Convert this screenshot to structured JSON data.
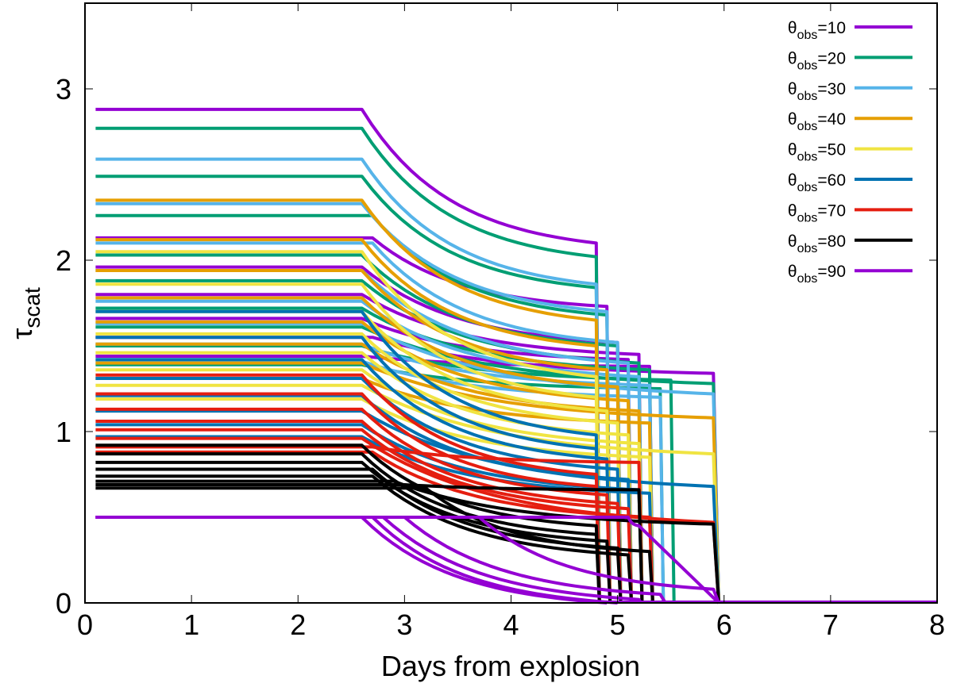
{
  "chart_data": {
    "type": "line",
    "title": "",
    "xlabel": "Days from explosion",
    "ylabel": "τ_scat",
    "ylabel_main": "τ",
    "ylabel_sub": "scat",
    "xlim": [
      0,
      8
    ],
    "ylim": [
      0,
      3.5
    ],
    "xticks": [
      0,
      1,
      2,
      3,
      4,
      5,
      6,
      7,
      8
    ],
    "yticks": [
      0,
      1,
      2,
      3
    ],
    "grid": false,
    "legend_position": "top-right",
    "legend": [
      {
        "label_main": "θ",
        "label_sub": "obs",
        "label_value": "=10",
        "color": "#9400d3"
      },
      {
        "label_main": "θ",
        "label_sub": "obs",
        "label_value": "=20",
        "color": "#009e73"
      },
      {
        "label_main": "θ",
        "label_sub": "obs",
        "label_value": "=30",
        "color": "#56b4e9"
      },
      {
        "label_main": "θ",
        "label_sub": "obs",
        "label_value": "=40",
        "color": "#e69f00"
      },
      {
        "label_main": "θ",
        "label_sub": "obs",
        "label_value": "=50",
        "color": "#f0e442"
      },
      {
        "label_main": "θ",
        "label_sub": "obs",
        "label_value": "=60",
        "color": "#0072b2"
      },
      {
        "label_main": "θ",
        "label_sub": "obs",
        "label_value": "=70",
        "color": "#e51e10"
      },
      {
        "label_main": "θ",
        "label_sub": "obs",
        "label_value": "=80",
        "color": "#000000"
      },
      {
        "label_main": "θ",
        "label_sub": "obs",
        "label_value": "=90",
        "color": "#9400d3"
      }
    ],
    "series_note": "Each curve: flat at tau0 from t=0.1 until t_break, then decays to tau_end at t_end, then drops to 0 at t_zero",
    "series": [
      {
        "group": 10,
        "color": "#9400d3",
        "curves": [
          {
            "tau0": 2.88,
            "t_break": 2.6,
            "tau_end": 2.1,
            "t_end": 4.8,
            "t_zero": 4.83
          },
          {
            "tau0": 2.13,
            "t_break": 2.7,
            "tau_end": 1.73,
            "t_end": 4.9,
            "t_zero": 4.93
          },
          {
            "tau0": 1.96,
            "t_break": 2.6,
            "tau_end": 1.52,
            "t_end": 5.0,
            "t_zero": 5.03
          },
          {
            "tau0": 1.8,
            "t_break": 2.6,
            "tau_end": 1.45,
            "t_end": 5.2,
            "t_zero": 5.23
          },
          {
            "tau0": 1.66,
            "t_break": 2.6,
            "tau_end": 1.42,
            "t_end": 5.1,
            "t_zero": 5.13
          },
          {
            "tau0": 1.55,
            "t_break": 2.7,
            "tau_end": 1.34,
            "t_end": 5.9,
            "t_zero": 5.95
          },
          {
            "tau0": 1.44,
            "t_break": 2.6,
            "tau_end": 1.38,
            "t_end": 5.3,
            "t_zero": 5.33
          }
        ]
      },
      {
        "group": 20,
        "color": "#009e73",
        "curves": [
          {
            "tau0": 2.77,
            "t_break": 2.6,
            "tau_end": 2.02,
            "t_end": 4.8,
            "t_zero": 4.83
          },
          {
            "tau0": 2.49,
            "t_break": 2.6,
            "tau_end": 1.84,
            "t_end": 4.8,
            "t_zero": 4.83
          },
          {
            "tau0": 2.26,
            "t_break": 2.7,
            "tau_end": 1.68,
            "t_end": 4.9,
            "t_zero": 4.93
          },
          {
            "tau0": 2.03,
            "t_break": 2.6,
            "tau_end": 1.5,
            "t_end": 5.0,
            "t_zero": 5.03
          },
          {
            "tau0": 1.88,
            "t_break": 2.6,
            "tau_end": 1.4,
            "t_end": 5.2,
            "t_zero": 5.23
          },
          {
            "tau0": 1.72,
            "t_break": 2.6,
            "tau_end": 1.36,
            "t_end": 5.3,
            "t_zero": 5.33
          },
          {
            "tau0": 1.61,
            "t_break": 2.6,
            "tau_end": 1.28,
            "t_end": 5.9,
            "t_zero": 5.95
          },
          {
            "tau0": 1.5,
            "t_break": 2.6,
            "tau_end": 1.3,
            "t_end": 5.5,
            "t_zero": 5.53
          },
          {
            "tau0": 1.39,
            "t_break": 2.6,
            "tau_end": 1.25,
            "t_end": 5.4,
            "t_zero": 5.43
          }
        ]
      },
      {
        "group": 30,
        "color": "#56b4e9",
        "curves": [
          {
            "tau0": 2.59,
            "t_break": 2.6,
            "tau_end": 1.86,
            "t_end": 4.8,
            "t_zero": 4.83
          },
          {
            "tau0": 2.33,
            "t_break": 2.6,
            "tau_end": 1.7,
            "t_end": 4.9,
            "t_zero": 4.93
          },
          {
            "tau0": 2.1,
            "t_break": 2.7,
            "tau_end": 1.52,
            "t_end": 5.0,
            "t_zero": 5.03
          },
          {
            "tau0": 1.94,
            "t_break": 2.6,
            "tau_end": 1.4,
            "t_end": 5.1,
            "t_zero": 5.13
          },
          {
            "tau0": 1.76,
            "t_break": 2.6,
            "tau_end": 1.32,
            "t_end": 5.2,
            "t_zero": 5.23
          },
          {
            "tau0": 1.63,
            "t_break": 2.6,
            "tau_end": 1.22,
            "t_end": 5.9,
            "t_zero": 5.95
          },
          {
            "tau0": 1.51,
            "t_break": 2.6,
            "tau_end": 1.27,
            "t_end": 5.3,
            "t_zero": 5.33
          },
          {
            "tau0": 1.41,
            "t_break": 2.6,
            "tau_end": 1.2,
            "t_end": 5.4,
            "t_zero": 5.43
          }
        ]
      },
      {
        "group": 40,
        "color": "#e69f00",
        "curves": [
          {
            "tau0": 2.35,
            "t_break": 2.6,
            "tau_end": 1.65,
            "t_end": 4.8,
            "t_zero": 4.83
          },
          {
            "tau0": 2.12,
            "t_break": 2.6,
            "tau_end": 1.5,
            "t_end": 4.8,
            "t_zero": 4.83
          },
          {
            "tau0": 1.94,
            "t_break": 2.6,
            "tau_end": 1.36,
            "t_end": 4.9,
            "t_zero": 4.93
          },
          {
            "tau0": 1.78,
            "t_break": 2.6,
            "tau_end": 1.26,
            "t_end": 5.0,
            "t_zero": 5.03
          },
          {
            "tau0": 1.64,
            "t_break": 2.6,
            "tau_end": 1.18,
            "t_end": 5.1,
            "t_zero": 5.13
          },
          {
            "tau0": 1.51,
            "t_break": 2.6,
            "tau_end": 1.12,
            "t_end": 5.2,
            "t_zero": 5.23
          },
          {
            "tau0": 1.4,
            "t_break": 2.6,
            "tau_end": 1.08,
            "t_end": 5.9,
            "t_zero": 5.95
          },
          {
            "tau0": 1.31,
            "t_break": 2.6,
            "tau_end": 1.05,
            "t_end": 5.3,
            "t_zero": 5.33
          }
        ]
      },
      {
        "group": 50,
        "color": "#f0e442",
        "curves": [
          {
            "tau0": 2.05,
            "t_break": 2.6,
            "tau_end": 1.32,
            "t_end": 4.8,
            "t_zero": 4.83
          },
          {
            "tau0": 1.86,
            "t_break": 2.6,
            "tau_end": 1.2,
            "t_end": 4.8,
            "t_zero": 4.83
          },
          {
            "tau0": 1.7,
            "t_break": 2.6,
            "tau_end": 1.12,
            "t_end": 4.9,
            "t_zero": 4.93
          },
          {
            "tau0": 1.57,
            "t_break": 2.6,
            "tau_end": 1.05,
            "t_end": 5.0,
            "t_zero": 5.03
          },
          {
            "tau0": 1.46,
            "t_break": 2.6,
            "tau_end": 0.98,
            "t_end": 5.1,
            "t_zero": 5.13
          },
          {
            "tau0": 1.36,
            "t_break": 2.6,
            "tau_end": 0.93,
            "t_end": 5.2,
            "t_zero": 5.23
          },
          {
            "tau0": 1.27,
            "t_break": 2.6,
            "tau_end": 0.87,
            "t_end": 5.9,
            "t_zero": 5.95
          },
          {
            "tau0": 1.19,
            "t_break": 2.6,
            "tau_end": 0.85,
            "t_end": 5.3,
            "t_zero": 5.33
          }
        ]
      },
      {
        "group": 60,
        "color": "#0072b2",
        "curves": [
          {
            "tau0": 1.7,
            "t_break": 2.6,
            "tau_end": 0.98,
            "t_end": 4.8,
            "t_zero": 4.83
          },
          {
            "tau0": 1.55,
            "t_break": 2.6,
            "tau_end": 0.9,
            "t_end": 4.8,
            "t_zero": 4.83
          },
          {
            "tau0": 1.42,
            "t_break": 2.6,
            "tau_end": 0.84,
            "t_end": 4.9,
            "t_zero": 4.93
          },
          {
            "tau0": 1.31,
            "t_break": 2.6,
            "tau_end": 0.78,
            "t_end": 5.0,
            "t_zero": 5.03
          },
          {
            "tau0": 1.21,
            "t_break": 2.6,
            "tau_end": 0.72,
            "t_end": 5.1,
            "t_zero": 5.13
          },
          {
            "tau0": 1.12,
            "t_break": 2.6,
            "tau_end": 0.68,
            "t_end": 5.9,
            "t_zero": 5.95
          },
          {
            "tau0": 1.04,
            "t_break": 2.6,
            "tau_end": 0.66,
            "t_end": 5.2,
            "t_zero": 5.23
          },
          {
            "tau0": 0.97,
            "t_break": 2.6,
            "tau_end": 0.64,
            "t_end": 5.3,
            "t_zero": 5.33
          }
        ]
      },
      {
        "group": 70,
        "color": "#e51e10",
        "curves": [
          {
            "tau0": 1.33,
            "t_break": 2.6,
            "tau_end": 0.75,
            "t_end": 4.8,
            "t_zero": 4.83
          },
          {
            "tau0": 1.22,
            "t_break": 2.6,
            "tau_end": 0.68,
            "t_end": 4.8,
            "t_zero": 4.83
          },
          {
            "tau0": 1.13,
            "t_break": 2.6,
            "tau_end": 0.63,
            "t_end": 4.9,
            "t_zero": 4.93
          },
          {
            "tau0": 1.06,
            "t_break": 2.6,
            "tau_end": 0.58,
            "t_end": 5.0,
            "t_zero": 5.03
          },
          {
            "tau0": 1.01,
            "t_break": 2.6,
            "tau_end": 0.55,
            "t_end": 5.1,
            "t_zero": 5.13
          },
          {
            "tau0": 0.96,
            "t_break": 2.6,
            "tau_end": 0.47,
            "t_end": 5.9,
            "t_zero": 5.95
          },
          {
            "tau0": 0.91,
            "t_break": 2.7,
            "tau_end": 0.82,
            "t_end": 5.2,
            "t_zero": 5.23
          },
          {
            "tau0": 0.88,
            "t_break": 2.7,
            "tau_end": 0.5,
            "t_end": 5.3,
            "t_zero": 5.33
          }
        ]
      },
      {
        "group": 80,
        "color": "#000000",
        "curves": [
          {
            "tau0": 0.92,
            "t_break": 2.6,
            "tau_end": 0.45,
            "t_end": 4.8,
            "t_zero": 4.83
          },
          {
            "tau0": 0.87,
            "t_break": 2.6,
            "tau_end": 0.4,
            "t_end": 4.8,
            "t_zero": 4.83
          },
          {
            "tau0": 0.82,
            "t_break": 2.6,
            "tau_end": 0.36,
            "t_end": 4.9,
            "t_zero": 4.93
          },
          {
            "tau0": 0.78,
            "t_break": 2.7,
            "tau_end": 0.32,
            "t_end": 5.0,
            "t_zero": 5.03
          },
          {
            "tau0": 0.74,
            "t_break": 2.7,
            "tau_end": 0.28,
            "t_end": 5.1,
            "t_zero": 5.13
          },
          {
            "tau0": 0.71,
            "t_break": 2.9,
            "tau_end": 0.46,
            "t_end": 5.9,
            "t_zero": 5.95
          },
          {
            "tau0": 0.69,
            "t_break": 3.0,
            "tau_end": 0.66,
            "t_end": 5.2,
            "t_zero": 5.23
          },
          {
            "tau0": 0.67,
            "t_break": 3.2,
            "tau_end": 0.3,
            "t_end": 5.3,
            "t_zero": 5.33
          }
        ]
      },
      {
        "group": 90,
        "color": "#9400d3",
        "curves": [
          {
            "tau0": 0.5,
            "t_break": 2.6,
            "tau_end": 0.0,
            "t_end": 4.9,
            "t_zero": 4.9
          },
          {
            "tau0": 0.5,
            "t_break": 2.7,
            "tau_end": 0.0,
            "t_end": 5.0,
            "t_zero": 5.0
          },
          {
            "tau0": 0.5,
            "t_break": 2.8,
            "tau_end": 0.02,
            "t_end": 5.2,
            "t_zero": 5.2
          },
          {
            "tau0": 0.5,
            "t_break": 3.0,
            "tau_end": 0.05,
            "t_end": 5.4,
            "t_zero": 5.45
          },
          {
            "tau0": 0.5,
            "t_break": 3.7,
            "tau_end": 0.08,
            "t_end": 5.9,
            "t_zero": 5.95
          },
          {
            "tau0": 0.5,
            "t_break": 5.1,
            "tau_end": 0.45,
            "t_end": 5.2,
            "t_zero": 5.95
          }
        ]
      }
    ],
    "baseline": {
      "tau": 0.0,
      "t_start": 4.8,
      "t_end": 8.0,
      "color": "#9400d3"
    }
  }
}
